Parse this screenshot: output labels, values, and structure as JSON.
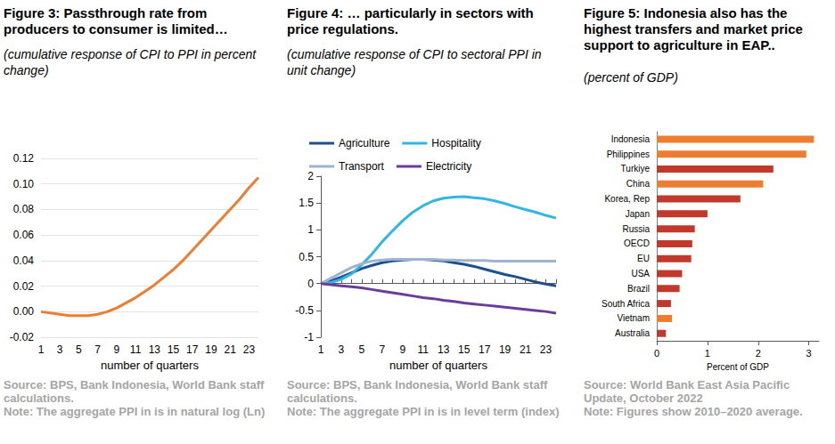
{
  "chart_data": [
    {
      "type": "line",
      "title": "Figure 3: Passthrough rate from producers to consumer is limited…",
      "subtitle": "(cumulative response of CPI to PPI in percent change)",
      "x_label": "number of quarters",
      "source": "Source: BPS, Bank Indonesia, World Bank staff calculations.",
      "note": "Note: The aggregate PPI in is in natural log (Ln)",
      "categories": [
        "1",
        null,
        "3",
        null,
        "5",
        null,
        "7",
        null,
        "9",
        null,
        "11",
        null,
        "13",
        null,
        "15",
        null,
        "17",
        null,
        "19",
        null,
        "21",
        null,
        "23",
        null
      ],
      "values": [
        0,
        -0.001,
        -0.002,
        -0.003,
        -0.003,
        -0.003,
        -0.002,
        0.0,
        0.003,
        0.007,
        0.011,
        0.016,
        0.021,
        0.027,
        0.033,
        0.04,
        0.048,
        0.056,
        0.064,
        0.072,
        0.08,
        0.088,
        0.097,
        0.105
      ],
      "color": "#ed7d31",
      "ylim": [
        -0.02,
        0.12
      ],
      "yticks": [
        -0.02,
        {
          "value": 0,
          "label": "0.00"
        },
        0.02,
        0.04,
        0.06,
        0.08,
        {
          "value": 0.1,
          "label": "0.10"
        },
        0.12
      ],
      "grid": true
    },
    {
      "type": "line",
      "title": "Figure 4: … particularly in sectors with price regulations.",
      "subtitle": "(cumulative response of CPI to sectoral PPI in unit change)",
      "x_label": "number of quarters",
      "source": "Source: BPS, Bank Indonesia, World Bank staff calculations.",
      "note": "Note: The aggregate PPI in is in level term (index)",
      "categories": [
        "1",
        null,
        "3",
        null,
        "5",
        null,
        "7",
        null,
        "9",
        null,
        "11",
        null,
        "13",
        null,
        "15",
        null,
        "17",
        null,
        "19",
        null,
        "21",
        null,
        "23",
        null
      ],
      "series": [
        {
          "name": "Agriculture",
          "color": "#1f4e8c",
          "values": [
            0,
            0.05,
            0.12,
            0.2,
            0.28,
            0.34,
            0.39,
            0.42,
            0.44,
            0.45,
            0.45,
            0.44,
            0.42,
            0.39,
            0.36,
            0.32,
            0.27,
            0.22,
            0.17,
            0.13,
            0.08,
            0.03,
            -0.01,
            -0.04
          ]
        },
        {
          "name": "Hospitality",
          "color": "#33b5e5",
          "values": [
            0,
            0.02,
            0.08,
            0.18,
            0.35,
            0.55,
            0.78,
            0.98,
            1.17,
            1.33,
            1.45,
            1.54,
            1.59,
            1.61,
            1.62,
            1.6,
            1.58,
            1.54,
            1.49,
            1.43,
            1.38,
            1.33,
            1.27,
            1.22
          ]
        },
        {
          "name": "Transport",
          "color": "#9db3cf",
          "values": [
            0,
            0.1,
            0.2,
            0.3,
            0.37,
            0.42,
            0.44,
            0.45,
            0.45,
            0.45,
            0.45,
            0.45,
            0.44,
            0.44,
            0.43,
            0.43,
            0.43,
            0.42,
            0.42,
            0.42,
            0.42,
            0.42,
            0.42,
            0.42
          ]
        },
        {
          "name": "Electricity",
          "color": "#6a3d9a",
          "values": [
            0,
            -0.02,
            -0.04,
            -0.06,
            -0.08,
            -0.11,
            -0.14,
            -0.17,
            -0.2,
            -0.23,
            -0.26,
            -0.28,
            -0.31,
            -0.33,
            -0.36,
            -0.38,
            -0.4,
            -0.42,
            -0.44,
            -0.46,
            -0.48,
            -0.5,
            -0.52,
            -0.55
          ]
        }
      ],
      "ylim": [
        -1,
        2
      ],
      "yticks": [
        -1,
        -0.5,
        0,
        0.5,
        1,
        1.5,
        2
      ],
      "legend": "top",
      "grid": false
    },
    {
      "type": "bar",
      "orientation": "horizontal",
      "title": "Figure 5:  Indonesia also has the highest transfers and market price support to agriculture in EAP..",
      "subtitle": "(percent of GDP)",
      "x_label": "Percent of GDP",
      "source": "Source: World Bank East Asia Pacific Update, October 2022",
      "note": "Note: Figures show 2010–2020 average.",
      "categories": [
        "Indonesia",
        "Philippines",
        "Turkiye",
        "China",
        "Korea, Rep",
        "Japan",
        "Russia",
        "OECD",
        "EU",
        "USA",
        "Brazil",
        "South Africa",
        "Vietnam",
        "Australia"
      ],
      "values": [
        3.1,
        2.95,
        2.3,
        2.1,
        1.65,
        1.0,
        0.75,
        0.7,
        0.68,
        0.5,
        0.45,
        0.28,
        0.3,
        0.18
      ],
      "colors": [
        "#ed7d31",
        "#ed7d31",
        "#c0392b",
        "#ed7d31",
        "#c0392b",
        "#c0392b",
        "#c0392b",
        "#c0392b",
        "#c0392b",
        "#c0392b",
        "#c0392b",
        "#c0392b",
        "#ed7d31",
        "#c0392b"
      ],
      "xlim": [
        0,
        3.2
      ],
      "xticks": [
        0,
        1,
        2,
        3
      ],
      "grid": false
    }
  ]
}
